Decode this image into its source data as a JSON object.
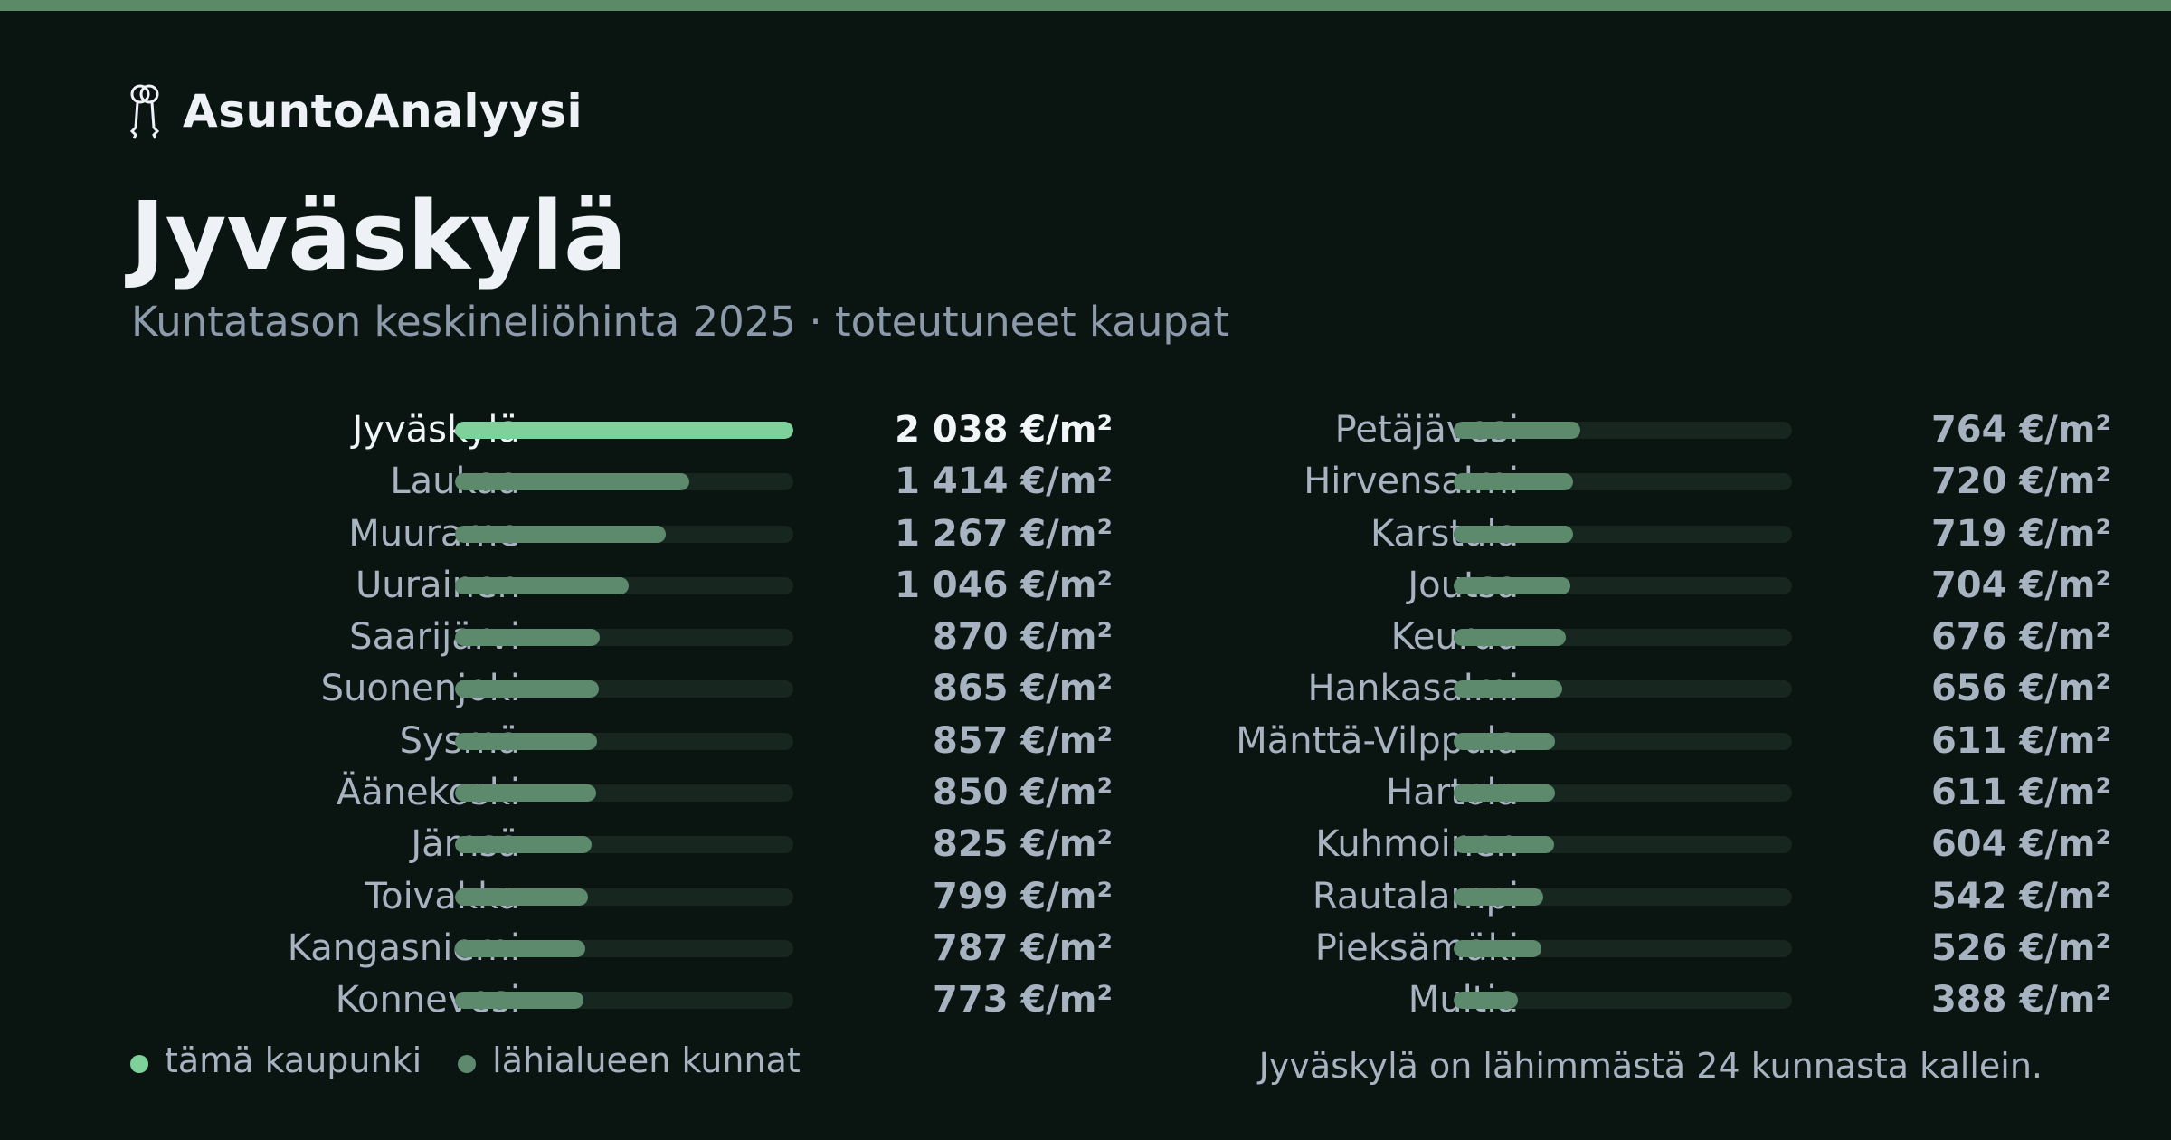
{
  "brand": {
    "name": "AsuntoAnalyysi",
    "icon": "keys-icon"
  },
  "colors": {
    "background": "#0a1512",
    "accent": "#7fd19b",
    "region_bar": "#5d8a6d",
    "track": "#17261f",
    "top_bar": "#5a8a66"
  },
  "chart_data": {
    "type": "bar",
    "orientation": "horizontal",
    "title": "Jyväskylä",
    "subtitle": "Kuntatason keskineliöhinta 2025 · toteutuneet kaupat",
    "unit": "€/m²",
    "highlight": "Jyväskylä",
    "xlim": [
      0,
      2038
    ],
    "categories": [
      "Jyväskylä",
      "Laukaa",
      "Muurame",
      "Uurainen",
      "Saarijärvi",
      "Suonenjoki",
      "Sysmä",
      "Äänekoski",
      "Jämsä",
      "Toivakka",
      "Kangasniemi",
      "Konnevesi",
      "Petäjävesi",
      "Hirvensalmi",
      "Karstula",
      "Joutsa",
      "Keuruu",
      "Hankasalmi",
      "Mänttä-Vilppula",
      "Hartola",
      "Kuhmoinen",
      "Rautalampi",
      "Pieksämäki",
      "Multia"
    ],
    "values": [
      2038,
      1414,
      1267,
      1046,
      870,
      865,
      857,
      850,
      825,
      799,
      787,
      773,
      764,
      720,
      719,
      704,
      676,
      656,
      611,
      611,
      604,
      542,
      526,
      388
    ],
    "value_labels": [
      "2 038 €/m²",
      "1 414 €/m²",
      "1 267 €/m²",
      "1 046 €/m²",
      "870 €/m²",
      "865 €/m²",
      "857 €/m²",
      "850 €/m²",
      "825 €/m²",
      "799 €/m²",
      "787 €/m²",
      "773 €/m²",
      "764 €/m²",
      "720 €/m²",
      "719 €/m²",
      "704 €/m²",
      "676 €/m²",
      "656 €/m²",
      "611 €/m²",
      "611 €/m²",
      "604 €/m²",
      "542 €/m²",
      "526 €/m²",
      "388 €/m²"
    ],
    "legend": [
      {
        "label": "tämä kaupunki",
        "color": "#7fd19b"
      },
      {
        "label": "lähialueen kunnat",
        "color": "#5d8a6d"
      }
    ],
    "legend_position": "bottom-left",
    "footnote": "Jyväskylä on lähimmästä 24 kunnasta kallein.",
    "grid": false
  }
}
